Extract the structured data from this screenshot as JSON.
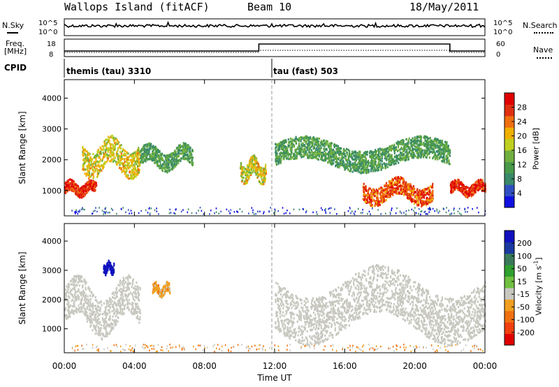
{
  "header": {
    "station": "Wallops Island (fitACF)",
    "beam": "Beam 10",
    "date": "18/May/2011"
  },
  "strip_labels": {
    "nsky": "N.Sky",
    "nsky_ticks": [
      "10^5",
      "10^0"
    ],
    "nsearch": "N.Search",
    "nsearch_ticks": [
      "10^5",
      "10^0"
    ],
    "freq": "Freq.",
    "freq_unit": "[MHz]",
    "freq_ticks": [
      "18",
      "8"
    ],
    "nave": "Nave",
    "nave_ticks": [
      "60",
      "0"
    ],
    "cpid": "CPID"
  },
  "cpid_modes": [
    {
      "name": "themis (tau) 3310",
      "start_hour": 0
    },
    {
      "name": "tau (fast) 503",
      "start_hour": 12
    }
  ],
  "colors": {
    "power": [
      "#1010e0",
      "#3050c0",
      "#3a8a6a",
      "#4a9a4a",
      "#70b040",
      "#c0d020",
      "#f0b000",
      "#f07010",
      "#e03010",
      "#e00000"
    ],
    "velocity": [
      "#1010c0",
      "#1a3aa0",
      "#3a7a5a",
      "#30a030",
      "#70c040",
      "#c8c8c0",
      "#f0a020",
      "#f07010",
      "#f04010",
      "#e00000"
    ]
  },
  "power_colorbar": {
    "label": "Power [dB]",
    "ticks": [
      "28",
      "24",
      "20",
      "16",
      "12",
      "8",
      "4"
    ]
  },
  "velocity_colorbar": {
    "label": "Velocity [m s",
    "label_sup": "-1",
    "label_end": "]",
    "ticks": [
      "200",
      "100",
      "50",
      "15",
      "-15",
      "-50",
      "-100",
      "-200"
    ]
  },
  "axes": {
    "ylabel": "Slant Range [km]",
    "yticks": [
      "4000",
      "3000",
      "2000",
      "1000"
    ],
    "xlabel": "Time UT",
    "xticks": [
      "00:00",
      "04:00",
      "08:00",
      "12:00",
      "16:00",
      "20:00",
      "00:00"
    ]
  },
  "chart_data": [
    {
      "type": "heatmap",
      "name": "power",
      "xlabel": "Time UT",
      "ylabel": "Slant Range [km]",
      "xlim_hours": [
        0,
        24
      ],
      "ylim_km": [
        180,
        4600
      ],
      "colorbar": "Power [dB]",
      "colorbar_ticks": [
        4,
        8,
        12,
        16,
        20,
        24,
        28
      ],
      "echo_bands": [
        {
          "t0": 0.0,
          "t1": 1.8,
          "r0": 850,
          "r1": 1350,
          "level": 26
        },
        {
          "t0": 1.0,
          "t1": 4.3,
          "r0": 1500,
          "r1": 2700,
          "level": 18
        },
        {
          "t0": 4.3,
          "t1": 7.3,
          "r0": 1700,
          "r1": 2500,
          "level": 12
        },
        {
          "t0": 10.0,
          "t1": 11.5,
          "r0": 1300,
          "r1": 2100,
          "level": 18
        },
        {
          "t0": 12.0,
          "t1": 22.0,
          "r0": 1700,
          "r1": 2700,
          "level": 12
        },
        {
          "t0": 17.0,
          "t1": 21.0,
          "r0": 600,
          "r1": 1400,
          "level": 24
        },
        {
          "t0": 22.0,
          "t1": 24.0,
          "r0": 850,
          "r1": 1350,
          "level": 26
        }
      ]
    },
    {
      "type": "heatmap",
      "name": "velocity",
      "xlabel": "Time UT",
      "ylabel": "Slant Range [km]",
      "xlim_hours": [
        0,
        24
      ],
      "ylim_km": [
        180,
        4600
      ],
      "colorbar": "Velocity [m s-1]",
      "colorbar_ticks": [
        -200,
        -100,
        -50,
        -15,
        15,
        50,
        100,
        200
      ],
      "echo_bands": [
        {
          "t0": 0.0,
          "t1": 4.3,
          "r0": 850,
          "r1": 2700,
          "level": 0
        },
        {
          "t0": 2.2,
          "t1": 2.8,
          "r0": 2900,
          "r1": 3350,
          "level": 200
        },
        {
          "t0": 5.0,
          "t1": 6.0,
          "r0": 2150,
          "r1": 2600,
          "level": -50
        },
        {
          "t0": 12.0,
          "t1": 24.0,
          "r0": 700,
          "r1": 3000,
          "level": 0
        }
      ]
    }
  ]
}
